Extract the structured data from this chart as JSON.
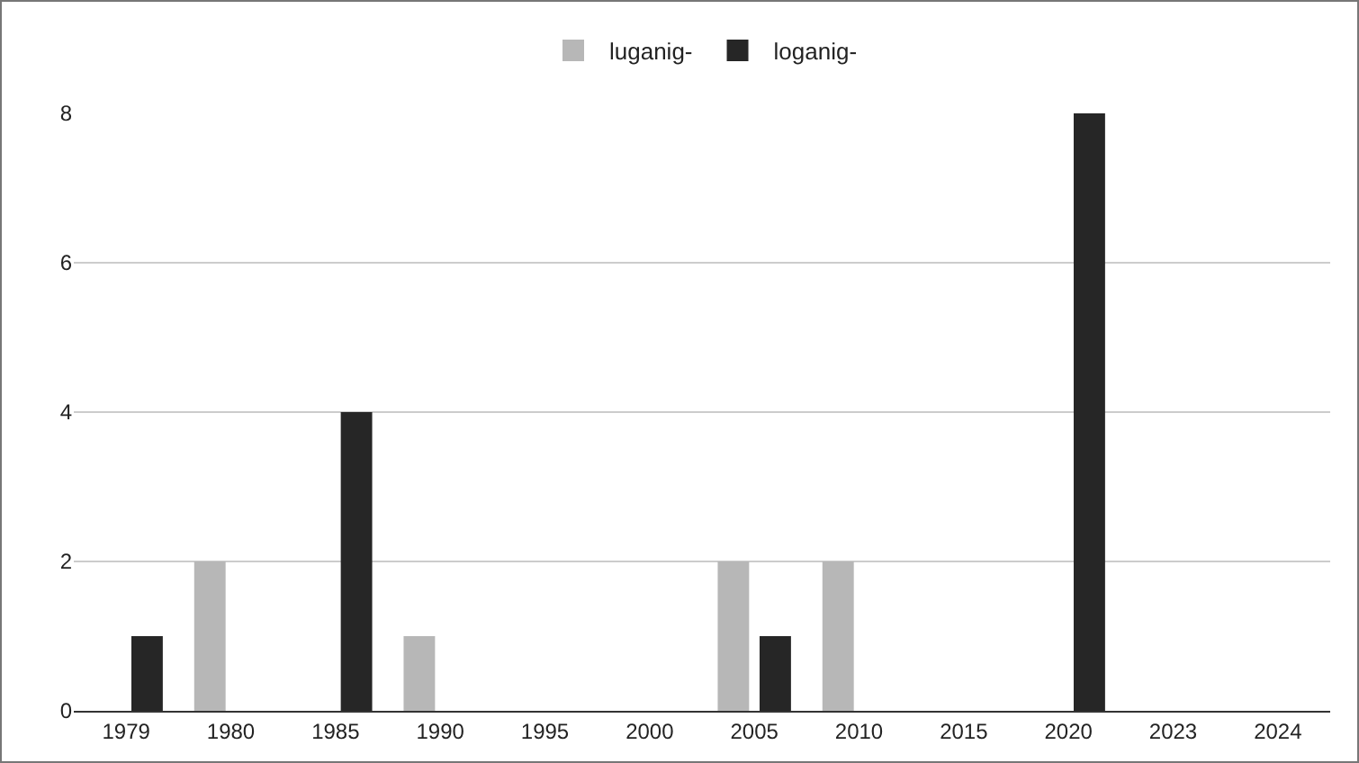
{
  "chart_data": {
    "type": "bar",
    "categories": [
      "1979",
      "1980",
      "1985",
      "1990",
      "1995",
      "2000",
      "2005",
      "2010",
      "2015",
      "2020",
      "2023",
      "2024"
    ],
    "series": [
      {
        "name": "luganig-",
        "color": "#b7b7b7",
        "values": [
          null,
          2,
          null,
          1,
          null,
          null,
          2,
          2,
          null,
          null,
          null,
          null
        ]
      },
      {
        "name": "loganig-",
        "color": "#262626",
        "values": [
          1,
          null,
          4,
          null,
          null,
          null,
          1,
          null,
          null,
          8,
          null,
          null
        ]
      }
    ],
    "ylim": [
      0,
      8
    ],
    "yticks": [
      0,
      2,
      4,
      6,
      8
    ],
    "grid": "y",
    "legend": "top"
  }
}
